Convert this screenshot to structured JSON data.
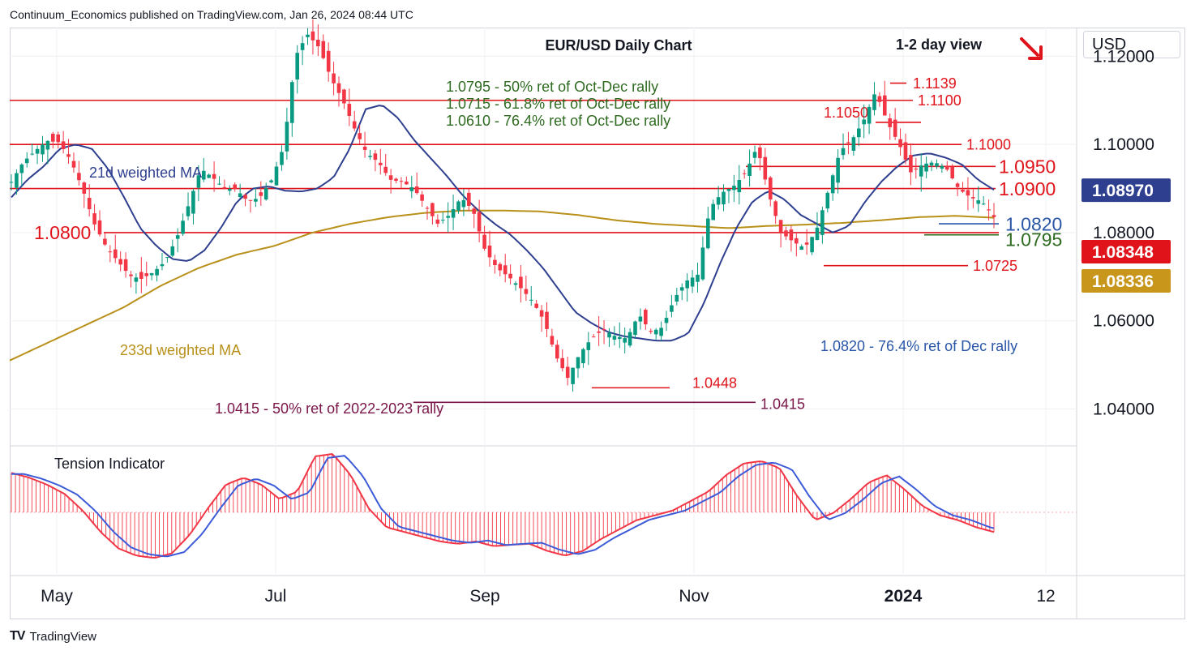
{
  "publisher": "Continuum_Economics published on TradingView.com, Jan 26, 2024 08:44 UTC",
  "footer_brand": "TradingView",
  "currency_selector": "USD",
  "colors": {
    "up_candle": "#089981",
    "down_candle": "#f23645",
    "ma21": "#2f3f8f",
    "ma233": "#b8901a",
    "level_line": "#e0131a",
    "retracement_text": "#2e6b20",
    "badge_current": "#e0131a",
    "badge_ma21": "#2f3f8f",
    "badge_ma233": "#c9961c"
  },
  "chart_data": [
    {
      "type": "candlestick",
      "title": "EUR/USD Daily Chart",
      "subtitle": "1-2 day view",
      "view_direction": "down-right-arrow",
      "ylim": [
        1.032,
        1.1265
      ],
      "yticks": [
        "1.12000",
        "1.10000",
        "1.08000",
        "1.06000",
        "1.04000"
      ],
      "ytick_values": [
        1.12,
        1.1,
        1.08,
        1.06,
        1.04
      ],
      "xticks": [
        "May",
        "Jul",
        "Sep",
        "Nov",
        "2024",
        "12"
      ],
      "grid": true,
      "indicators": [
        "21d weighted MA",
        "233d weighted MA"
      ],
      "price_badges": [
        {
          "label": "1.08970",
          "series": "21d weighted MA",
          "value": 1.0897
        },
        {
          "label": "1.08348",
          "series": "price",
          "value": 1.08348
        },
        {
          "label": "1.08336",
          "series": "233d weighted MA",
          "value": 1.08336
        }
      ],
      "levels": [
        {
          "label": "1.1139",
          "value": 1.1139
        },
        {
          "label": "1.1100",
          "value": 1.11
        },
        {
          "label": "1.1050",
          "value": 1.105
        },
        {
          "label": "1.1000",
          "value": 1.1
        },
        {
          "label": "1.0950",
          "value": 1.095
        },
        {
          "label": "1.0900",
          "value": 1.09
        },
        {
          "label": "1.0820",
          "value": 1.082
        },
        {
          "label": "1.0800",
          "value": 1.08
        },
        {
          "label": "1.0795",
          "value": 1.0795
        },
        {
          "label": "1.0725",
          "value": 1.0725
        },
        {
          "label": "1.0448",
          "value": 1.0448
        },
        {
          "label": "1.0415",
          "value": 1.0415
        }
      ],
      "annotations": [
        "1.0795 - 50% ret of Oct-Dec rally",
        "1.0715 - 61.8% ret of Oct-Dec rally",
        "1.0610 - 76.4% ret of Oct-Dec rally",
        "1.0820 - 76.4% ret of Dec rally",
        "1.0415 - 50% ret of 2022-2023 rally"
      ],
      "price_path": [
        1.0915,
        1.096,
        1.0985,
        1.1008,
        1.1005,
        1.0965,
        1.09,
        1.082,
        1.0768,
        1.0735,
        1.0702,
        1.0695,
        1.071,
        1.0735,
        1.079,
        1.0865,
        1.0945,
        1.0925,
        1.09,
        1.0898,
        1.087,
        1.088,
        1.092,
        1.0995,
        1.12,
        1.125,
        1.122,
        1.115,
        1.11,
        1.1035,
        1.098,
        1.096,
        1.092,
        1.0915,
        1.09,
        1.086,
        1.082,
        1.084,
        1.088,
        1.085,
        1.076,
        1.072,
        1.07,
        1.0675,
        1.0645,
        1.06,
        1.052,
        1.047,
        1.0525,
        1.056,
        1.058,
        1.0565,
        1.056,
        1.0615,
        1.0575,
        1.0585,
        1.065,
        1.069,
        1.0705,
        1.0855,
        1.089,
        1.0905,
        1.0935,
        1.0995,
        1.0885,
        1.08,
        1.078,
        1.0765,
        1.0805,
        1.0895,
        1.0985,
        1.101,
        1.1055,
        1.112,
        1.105,
        1.1,
        1.0935,
        1.0955,
        1.096,
        1.0945,
        1.09,
        1.088,
        1.087,
        1.0835
      ],
      "ma21_path": [
        1.088,
        1.092,
        1.095,
        1.099,
        1.1,
        1.099,
        1.0945,
        1.088,
        1.081,
        1.077,
        1.074,
        1.0735,
        1.076,
        1.081,
        1.087,
        1.09,
        1.0905,
        1.0895,
        1.0893,
        1.09,
        1.0925,
        1.099,
        1.108,
        1.109,
        1.106,
        1.101,
        1.097,
        1.093,
        1.0885,
        1.085,
        1.082,
        1.0795,
        1.076,
        1.072,
        1.067,
        1.062,
        1.0595,
        1.0575,
        1.0565,
        1.056,
        1.0555,
        1.0555,
        1.057,
        1.064,
        1.073,
        1.081,
        1.087,
        1.0895,
        1.0875,
        1.084,
        1.082,
        1.08,
        1.0815,
        1.087,
        1.0915,
        1.095,
        1.0975,
        1.098,
        1.097,
        1.0955,
        1.092,
        1.0897
      ],
      "ma233_path": [
        1.051,
        1.055,
        1.059,
        1.063,
        1.068,
        1.072,
        1.075,
        1.077,
        1.08,
        1.082,
        1.0835,
        1.0845,
        1.085,
        1.085,
        1.0848,
        1.084,
        1.0828,
        1.082,
        1.0815,
        1.081,
        1.0815,
        1.0818,
        1.0822,
        1.0828,
        1.0835,
        1.0838,
        1.08336
      ],
      "oscillator": {
        "title": "Tension Indicator",
        "ylim": [
          -1.2,
          1.2
        ],
        "values": [
          0.8,
          0.7,
          0.55,
          0.35,
          0.0,
          -0.45,
          -0.8,
          -0.95,
          -1.0,
          -0.9,
          -0.5,
          0.05,
          0.55,
          0.7,
          0.55,
          0.25,
          0.4,
          1.15,
          1.2,
          0.75,
          0.05,
          -0.35,
          -0.45,
          -0.55,
          -0.65,
          -0.7,
          -0.65,
          -0.75,
          -0.72,
          -0.7,
          -0.85,
          -0.95,
          -0.85,
          -0.6,
          -0.4,
          -0.2,
          -0.1,
          0.0,
          0.2,
          0.4,
          0.75,
          1.0,
          1.05,
          0.9,
          0.3,
          -0.2,
          -0.05,
          0.25,
          0.6,
          0.75,
          0.45,
          0.1,
          -0.1,
          -0.2,
          -0.35,
          -0.45
        ]
      }
    }
  ]
}
